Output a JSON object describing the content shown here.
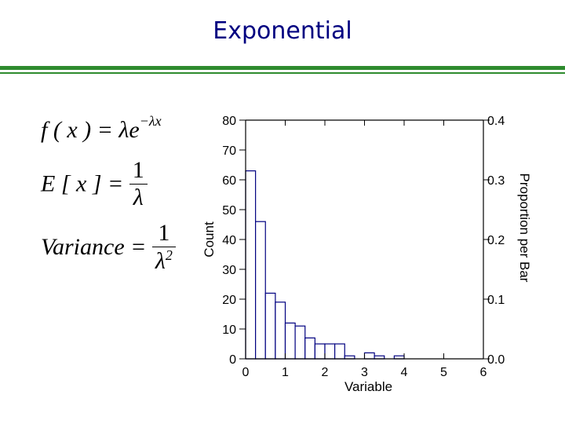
{
  "slide": {
    "title": "Exponential",
    "accent_color": "#2e8b2e",
    "title_color": "#000080"
  },
  "formulas": {
    "pdf": {
      "lhs": "f ( x ) = λe",
      "exponent": "−λx"
    },
    "expectation": {
      "lhs": "E [ x ] =",
      "numerator": "1",
      "denominator": "λ"
    },
    "variance": {
      "lhs": "Variance =",
      "numerator": "1",
      "denominator": "λ",
      "den_exponent": "2"
    }
  },
  "chart_data": {
    "type": "bar",
    "title": "",
    "xlabel": "Variable",
    "ylabel": "Count",
    "y2label": "Proportion per Bar",
    "xlim": [
      0,
      6
    ],
    "ylim": [
      0,
      80
    ],
    "y2lim": [
      0.0,
      0.4
    ],
    "bin_width": 0.25,
    "x_ticks": [
      "0",
      "1",
      "2",
      "3",
      "4",
      "5",
      "6"
    ],
    "y_ticks": [
      "0",
      "10",
      "20",
      "30",
      "40",
      "50",
      "60",
      "70",
      "80"
    ],
    "y2_ticks": [
      "0.0",
      "0.1",
      "0.2",
      "0.3",
      "0.4"
    ],
    "bin_starts": [
      0,
      0.25,
      0.5,
      0.75,
      1.0,
      1.25,
      1.5,
      1.75,
      2.0,
      2.25,
      2.5,
      2.75,
      3.0,
      3.25,
      3.5,
      3.75,
      4.0,
      4.25,
      4.5,
      4.75,
      5.0
    ],
    "values": [
      63,
      46,
      22,
      19,
      12,
      11,
      7,
      5,
      5,
      5,
      1,
      0,
      2,
      1,
      0,
      1,
      0,
      0,
      0,
      0,
      0
    ],
    "bar_fill": "#ffffff",
    "bar_stroke": "#000080"
  }
}
